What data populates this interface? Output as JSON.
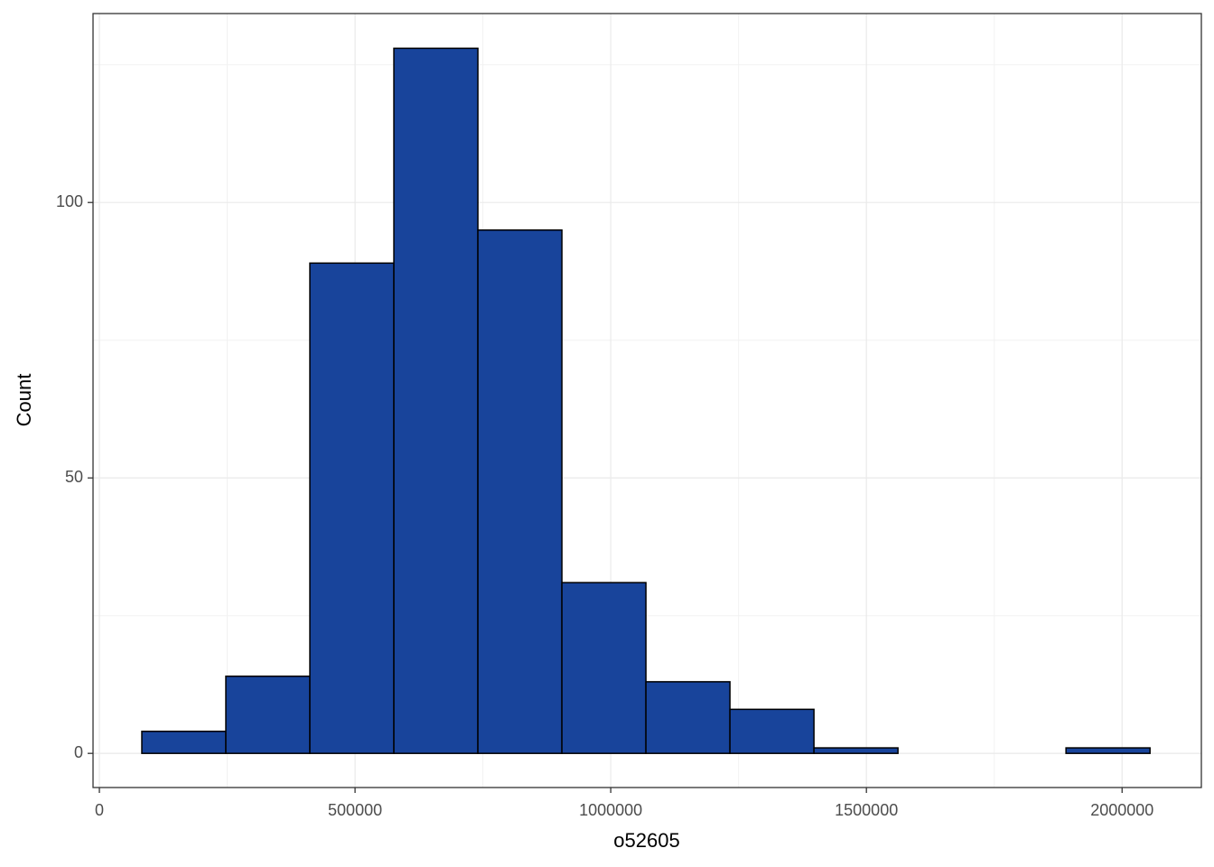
{
  "chart_data": {
    "type": "histogram",
    "x_label": "o52605",
    "y_label": "Count",
    "bins": [
      83000,
      247300,
      411600,
      575900,
      740200,
      904500,
      1068800,
      1233100,
      1397400,
      1561700,
      1726000,
      1890300,
      2054600
    ],
    "values": [
      4,
      14,
      89,
      128,
      95,
      31,
      13,
      8,
      1,
      0,
      0,
      1
    ],
    "color": "#18449b",
    "edge_color": "#000000",
    "xlim": [
      -12400,
      2155000
    ],
    "ylim": [
      -6.2,
      134.3
    ],
    "xticks": [
      0,
      500000,
      1000000,
      1500000,
      2000000
    ],
    "yticks": [
      0,
      50,
      100
    ],
    "grid": true
  }
}
